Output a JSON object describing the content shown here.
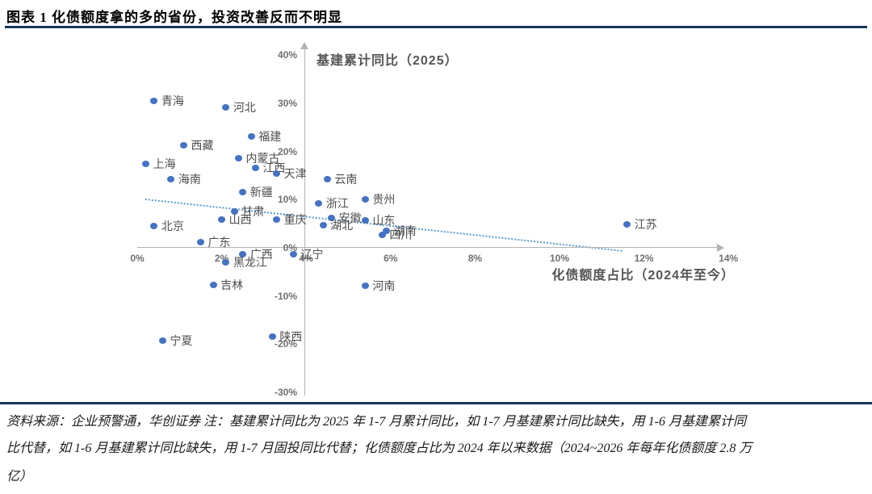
{
  "title": "图表 1  化债额度拿的多的省份，投资改善反而不明显",
  "chart_data": {
    "type": "scatter",
    "ylabel": "基建累计同比（2025）",
    "xlabel": "化债额度占比（2024年至今）",
    "xlim": [
      0,
      14.2
    ],
    "ylim": [
      -30,
      40
    ],
    "grid": false,
    "legend": "none",
    "x_ticks": [
      0,
      2,
      4,
      6,
      8,
      10,
      12,
      14
    ],
    "x_tick_labels": [
      "0%",
      "2%",
      "4%",
      "6%",
      "8%",
      "10%",
      "12%",
      "14%"
    ],
    "y_ticks": [
      40,
      30,
      20,
      10,
      0,
      -10,
      -20,
      -30
    ],
    "y_tick_labels": [
      "40%",
      "30%",
      "20%",
      "10%",
      "0%",
      "-10%",
      "-20%",
      "-30%"
    ],
    "points": [
      {
        "name": "青海",
        "x": 0.4,
        "y": 30.5
      },
      {
        "name": "河北",
        "x": 2.1,
        "y": 29.2
      },
      {
        "name": "福建",
        "x": 2.7,
        "y": 23.1
      },
      {
        "name": "西藏",
        "x": 1.1,
        "y": 21.3
      },
      {
        "name": "内蒙古",
        "x": 2.4,
        "y": 18.6
      },
      {
        "name": "上海",
        "x": 0.2,
        "y": 17.4
      },
      {
        "name": "江西",
        "x": 2.8,
        "y": 16.6
      },
      {
        "name": "天津",
        "x": 3.3,
        "y": 15.4
      },
      {
        "name": "海南",
        "x": 0.8,
        "y": 14.3
      },
      {
        "name": "云南",
        "x": 4.5,
        "y": 14.2
      },
      {
        "name": "新疆",
        "x": 2.5,
        "y": 11.6
      },
      {
        "name": "贵州",
        "x": 5.4,
        "y": 10.1
      },
      {
        "name": "浙江",
        "x": 4.3,
        "y": 9.2
      },
      {
        "name": "甘肃",
        "x": 2.3,
        "y": 7.5
      },
      {
        "name": "安徽",
        "x": 4.6,
        "y": 6.2
      },
      {
        "name": "山西",
        "x": 2.0,
        "y": 5.9
      },
      {
        "name": "重庆",
        "x": 3.3,
        "y": 5.9
      },
      {
        "name": "山东",
        "x": 5.4,
        "y": 5.7
      },
      {
        "name": "江苏",
        "x": 11.6,
        "y": 4.9
      },
      {
        "name": "湖北",
        "x": 4.4,
        "y": 4.7
      },
      {
        "name": "北京",
        "x": 0.4,
        "y": 4.5
      },
      {
        "name": "湖南",
        "x": 5.9,
        "y": 3.5
      },
      {
        "name": "四川",
        "x": 5.8,
        "y": 2.7
      },
      {
        "name": "广东",
        "x": 1.5,
        "y": 1.2
      },
      {
        "name": "广西",
        "x": 2.5,
        "y": -1.3
      },
      {
        "name": "辽宁",
        "x": 3.7,
        "y": -1.3
      },
      {
        "name": "黑龙江",
        "x": 2.1,
        "y": -3.0
      },
      {
        "name": "吉林",
        "x": 1.8,
        "y": -7.7
      },
      {
        "name": "河南",
        "x": 5.4,
        "y": -7.9
      },
      {
        "name": "陕西",
        "x": 3.2,
        "y": -18.4
      },
      {
        "name": "宁夏",
        "x": 0.6,
        "y": -19.3
      }
    ],
    "trendline": {
      "x1": 0.2,
      "y1": 10.2,
      "x2": 11.5,
      "y2": -0.5,
      "style": "dotted"
    },
    "colors": {
      "point": "#4472c4",
      "trend": "#5b9bd5",
      "axis": "#b3b3b3",
      "tick_text": "#6f6f6f",
      "label_text": "#4d4d4d",
      "rule": "#17365d"
    }
  },
  "footer": {
    "lines": [
      "资料来源：企业预警通，华创证券  注：基建累计同比为 2025 年 1-7 月累计同比，如 1-7 月基建累计同比缺失，用 1-6 月基建累计同",
      "比代替，如 1-6 月基建累计同比缺失，用 1-7 月固投同比代替；化债额度占比为 2024 年以来数据（2024~2026 年每年化债额度 2.8 万",
      "亿）"
    ]
  }
}
